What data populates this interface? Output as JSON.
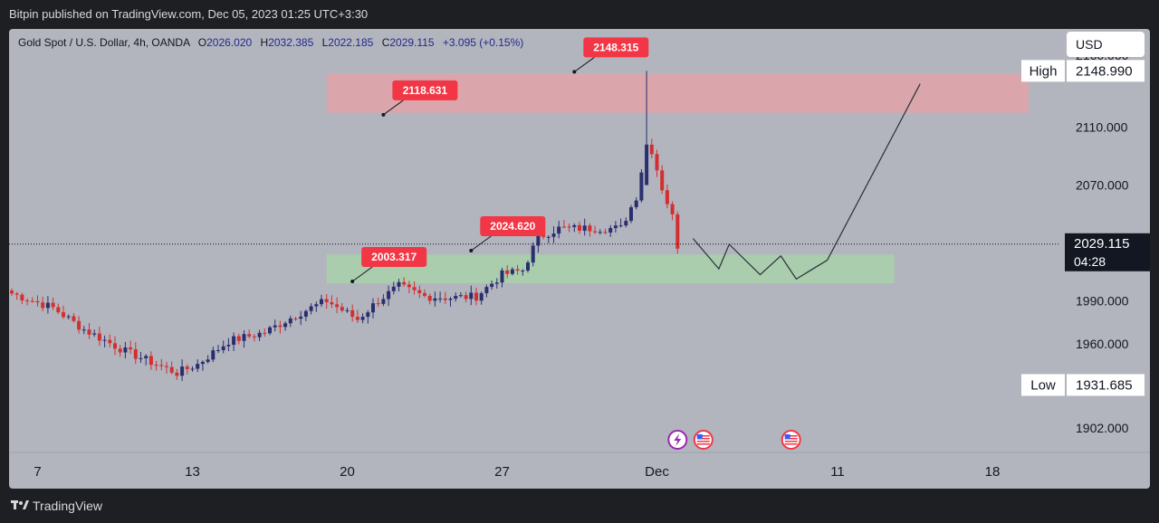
{
  "header": {
    "publish_text": "Bitpin published on TradingView.com, Dec 05, 2023 01:25 UTC+3:30"
  },
  "legend": {
    "symbol": "Gold Spot / U.S. Dollar, 4h, OANDA",
    "o_label": "O",
    "o_value": "2026.020",
    "h_label": "H",
    "h_value": "2032.385",
    "l_label": "L",
    "l_value": "2022.185",
    "c_label": "C",
    "c_value": "2029.115",
    "change": "+3.095 (+0.15%)"
  },
  "currency_button": "USD",
  "footer": {
    "brand": "TradingView"
  },
  "colors": {
    "background": "#b2b5be",
    "up_candle": "#2a2e6e",
    "down_candle": "#d32f2f",
    "supply_zone": "#e8a0a6",
    "demand_zone": "#a5d6a7",
    "callout": "#f23645",
    "scale_label": "#ffffff"
  },
  "chart_data": {
    "type": "candlestick",
    "symbol": "XAUUSD",
    "timeframe": "4h",
    "y_axis": {
      "ticks": [
        "2160.000",
        "2110.000",
        "2070.000",
        "1990.000",
        "1960.000",
        "1902.000"
      ],
      "ylim": [
        1885,
        2178
      ]
    },
    "x_axis": {
      "ticks": [
        {
          "label": "7",
          "index": 5
        },
        {
          "label": "13",
          "index": 35
        },
        {
          "label": "20",
          "index": 65
        },
        {
          "label": "27",
          "index": 95
        },
        {
          "label": "Dec",
          "index": 125
        },
        {
          "label": "11",
          "index": 160
        },
        {
          "label": "18",
          "index": 190
        }
      ]
    },
    "key_points": [
      [
        0,
        1995
      ],
      [
        8,
        1985
      ],
      [
        14,
        1970
      ],
      [
        22,
        1955
      ],
      [
        32,
        1940
      ],
      [
        36,
        1946
      ],
      [
        42,
        1962
      ],
      [
        49,
        1968
      ],
      [
        55,
        1980
      ],
      [
        61,
        1990
      ],
      [
        67,
        1977
      ],
      [
        71,
        1990
      ],
      [
        75,
        2000
      ],
      [
        80,
        1993
      ],
      [
        85,
        1992
      ],
      [
        90,
        1993
      ],
      [
        95,
        2008
      ],
      [
        99,
        2011
      ],
      [
        102,
        2034
      ],
      [
        106,
        2040
      ],
      [
        114,
        2040
      ],
      [
        118,
        2040
      ],
      [
        121,
        2062
      ],
      [
        123,
        2098
      ],
      [
        124,
        2094
      ],
      [
        126,
        2068
      ],
      [
        128,
        2048
      ],
      [
        129,
        2026
      ]
    ],
    "price_markers": [
      {
        "label": "High",
        "value": "2148.990"
      },
      {
        "label": "Low",
        "value": "1931.685"
      }
    ],
    "last_price": {
      "value": "2029.115",
      "countdown": "04:28"
    },
    "zones": [
      {
        "name": "supply",
        "x_from": 61,
        "x_to": 197,
        "y_from": 2120,
        "y_to": 2147
      },
      {
        "name": "demand",
        "x_from": 61,
        "x_to": 171,
        "y_from": 2002,
        "y_to": 2022
      }
    ],
    "callouts": [
      {
        "text": "2148.315",
        "x": 109,
        "y": 2148.315
      },
      {
        "text": "2118.631",
        "x": 72,
        "y": 2118.631
      },
      {
        "text": "2024.620",
        "x": 89,
        "y": 2024.62
      },
      {
        "text": "2003.317",
        "x": 66,
        "y": 2003.317
      }
    ],
    "projection": [
      [
        132,
        2033
      ],
      [
        137,
        2012
      ],
      [
        139,
        2029
      ],
      [
        145,
        2008
      ],
      [
        149,
        2021
      ],
      [
        152,
        2005
      ],
      [
        158,
        2018
      ],
      [
        176,
        2140
      ]
    ],
    "events": [
      {
        "icon": "lightning-event-icon",
        "index": 129
      },
      {
        "icon": "us-flag-event-icon",
        "index": 134
      },
      {
        "icon": "us-flag-event-icon",
        "index": 151
      }
    ]
  }
}
